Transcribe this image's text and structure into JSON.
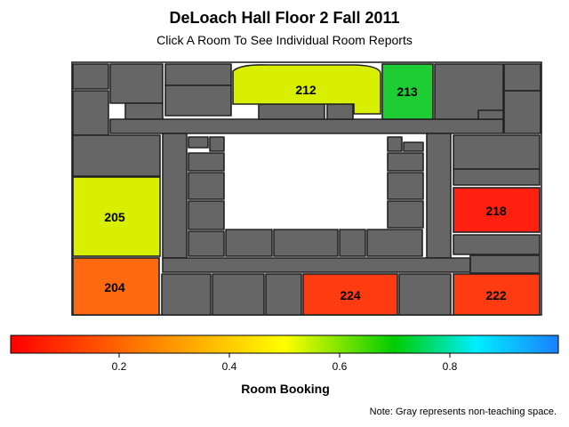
{
  "header": {
    "title": "DeLoach Hall Floor 2 Fall 2011",
    "subtitle": "Click A Room To See Individual Room Reports"
  },
  "rooms": [
    {
      "id": "212",
      "label": "212",
      "color": "#d8f000"
    },
    {
      "id": "213",
      "label": "213",
      "color": "#1ecc33"
    },
    {
      "id": "205",
      "label": "205",
      "color": "#d8f000"
    },
    {
      "id": "218",
      "label": "218",
      "color": "#ff2010"
    },
    {
      "id": "204",
      "label": "204",
      "color": "#ff6a10"
    },
    {
      "id": "224",
      "label": "224",
      "color": "#ff3c10"
    },
    {
      "id": "222",
      "label": "222",
      "color": "#ff3c10"
    }
  ],
  "colorbar": {
    "stops": [
      "#ff0000",
      "#ff6600",
      "#ffff00",
      "#00cc00",
      "#00eeff",
      "#1a80ff"
    ],
    "ticks": [
      "0.2",
      "0.4",
      "0.6",
      "0.8"
    ],
    "title": "Room Booking"
  },
  "note": "Note: Gray represents non-teaching space.",
  "colors": {
    "non_teaching": "#666666"
  }
}
